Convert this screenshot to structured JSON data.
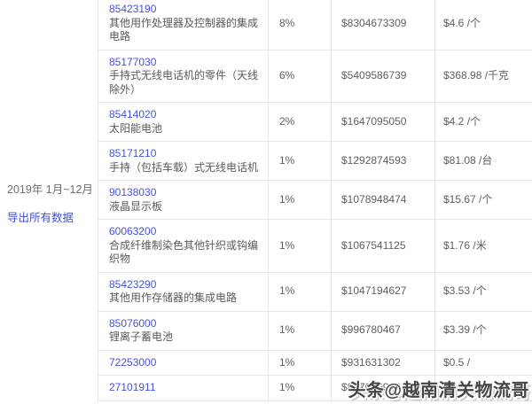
{
  "page": {
    "period_label": "2019年 1月~12月",
    "export_link_label": "导出所有数据",
    "watermark_text": "头条@越南清关物流哥"
  },
  "colors": {
    "hs_code_link": "#4752d6",
    "export_link": "#3f51d1",
    "body_text": "#5f5f5f",
    "table_border": "#e6e6e6",
    "watermark_text": "#454545"
  },
  "table": {
    "rows": [
      {
        "code": "85423190",
        "description": "其他用作处理器及控制器的集成电路",
        "share": "8%",
        "amount": "$8304673309",
        "unit_price": "$4.6 /个"
      },
      {
        "code": "85177030",
        "description": "手持式无线电话机的零件（天线除外）",
        "share": "6%",
        "amount": "$5409586739",
        "unit_price": "$368.98 /千克"
      },
      {
        "code": "85414020",
        "description": "太阳能电池",
        "share": "2%",
        "amount": "$1647095050",
        "unit_price": "$4.2 /个"
      },
      {
        "code": "85171210",
        "description": "手持（包括车载）式无线电话机",
        "share": "1%",
        "amount": "$1292874593",
        "unit_price": "$81.08 /台"
      },
      {
        "code": "90138030",
        "description": "液晶显示板",
        "share": "1%",
        "amount": "$1078948474",
        "unit_price": "$15.67 /个"
      },
      {
        "code": "60063200",
        "description": "合成纤维制染色其他针织或钩编织物",
        "share": "1%",
        "amount": "$1067541125",
        "unit_price": "$1.76 /米"
      },
      {
        "code": "85423290",
        "description": "其他用作存储器的集成电路",
        "share": "1%",
        "amount": "$1047194627",
        "unit_price": "$3.53 /个"
      },
      {
        "code": "85076000",
        "description": "锂离子蓄电池",
        "share": "1%",
        "amount": "$996780467",
        "unit_price": "$3.39 /个"
      },
      {
        "code": "72253000",
        "description": "",
        "share": "1%",
        "amount": "$931631302",
        "unit_price": "$0.5 /"
      },
      {
        "code": "27101911",
        "description": "",
        "share": "1%",
        "amount": "$897026943",
        "unit_price": "$0.53 /"
      }
    ]
  }
}
